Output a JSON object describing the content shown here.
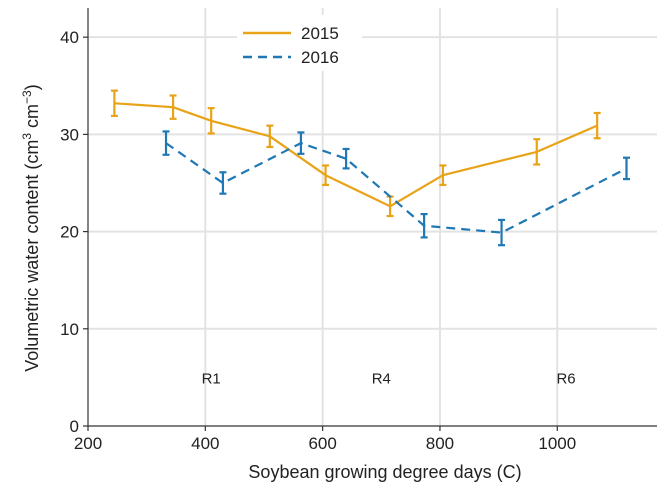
{
  "chart_data": {
    "type": "line",
    "xlabel": "Soybean growing degree days (C)",
    "ylabel_parts": [
      "Volumetric water content (cm",
      "3",
      " cm",
      "−3",
      ")"
    ],
    "xlim": [
      200,
      1170
    ],
    "ylim": [
      0,
      43
    ],
    "xticks": [
      200,
      400,
      600,
      800,
      1000
    ],
    "yticks": [
      0,
      10,
      20,
      30,
      40
    ],
    "grid": true,
    "legend_position": "top-center",
    "stage_labels": [
      {
        "text": "R1",
        "x": 410,
        "y": 5
      },
      {
        "text": "R4",
        "x": 700,
        "y": 5
      },
      {
        "text": "R6",
        "x": 1015,
        "y": 5
      }
    ],
    "series": [
      {
        "name": "2015",
        "color": "#E8A317",
        "style": "solid",
        "points": [
          {
            "x": 245,
            "y": 33.2,
            "err": 1.3
          },
          {
            "x": 345,
            "y": 32.8,
            "err": 1.2
          },
          {
            "x": 410,
            "y": 31.4,
            "err": 1.3
          },
          {
            "x": 510,
            "y": 29.8,
            "err": 1.1
          },
          {
            "x": 605,
            "y": 25.8,
            "err": 1.0
          },
          {
            "x": 715,
            "y": 22.6,
            "err": 1.0
          },
          {
            "x": 805,
            "y": 25.8,
            "err": 1.0
          },
          {
            "x": 965,
            "y": 28.2,
            "err": 1.3
          },
          {
            "x": 1068,
            "y": 30.9,
            "err": 1.3
          }
        ]
      },
      {
        "name": "2016",
        "color": "#1F78B4",
        "style": "dashed",
        "points": [
          {
            "x": 333,
            "y": 29.1,
            "err": 1.2
          },
          {
            "x": 430,
            "y": 25.0,
            "err": 1.1
          },
          {
            "x": 563,
            "y": 29.1,
            "err": 1.1
          },
          {
            "x": 640,
            "y": 27.5,
            "err": 1.0
          },
          {
            "x": 773,
            "y": 20.6,
            "err": 1.2
          },
          {
            "x": 905,
            "y": 19.9,
            "err": 1.3
          },
          {
            "x": 1118,
            "y": 26.5,
            "err": 1.1
          }
        ]
      }
    ]
  }
}
